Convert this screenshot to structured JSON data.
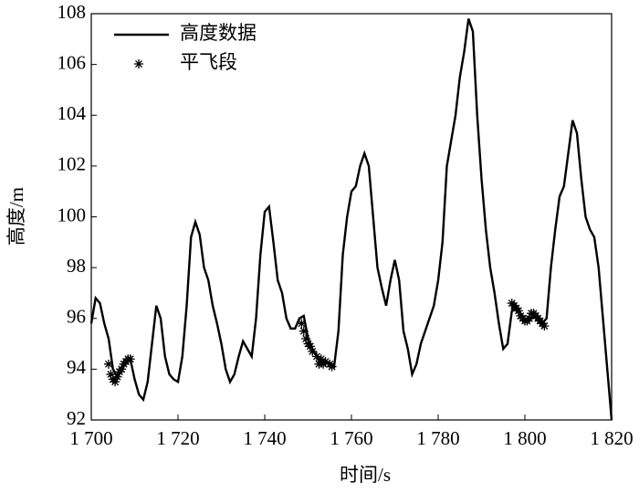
{
  "chart_data": {
    "type": "line",
    "xlabel": "时间/s",
    "ylabel": "高度/m",
    "xlim": [
      1700,
      1820
    ],
    "xticks": [
      {
        "value": 1700,
        "label": "1 700"
      },
      {
        "value": 1720,
        "label": "1 720"
      },
      {
        "value": 1740,
        "label": "1 740"
      },
      {
        "value": 1760,
        "label": "1 760"
      },
      {
        "value": 1780,
        "label": "1 780"
      },
      {
        "value": 1800,
        "label": "1 800"
      },
      {
        "value": 1820,
        "label": "1 820"
      }
    ],
    "ylim": [
      92,
      108
    ],
    "yticks": [
      92,
      94,
      96,
      98,
      100,
      102,
      104,
      106,
      108
    ],
    "legend": "upper left",
    "grid": false,
    "series": [
      {
        "name": "高度数据",
        "color": "#000000",
        "style": "line",
        "x": [
          1700,
          1701,
          1702,
          1703,
          1704,
          1705,
          1706,
          1707,
          1708,
          1709,
          1710,
          1711,
          1712,
          1713,
          1714,
          1715,
          1716,
          1717,
          1718,
          1719,
          1720,
          1721,
          1722,
          1723,
          1724,
          1725,
          1726,
          1727,
          1728,
          1729,
          1730,
          1731,
          1732,
          1733,
          1734,
          1735,
          1736,
          1737,
          1738,
          1739,
          1740,
          1741,
          1742,
          1743,
          1744,
          1745,
          1746,
          1747,
          1748,
          1749,
          1750,
          1751,
          1752,
          1753,
          1754,
          1755,
          1756,
          1757,
          1758,
          1759,
          1760,
          1761,
          1762,
          1763,
          1764,
          1765,
          1766,
          1767,
          1768,
          1769,
          1770,
          1771,
          1772,
          1773,
          1774,
          1775,
          1776,
          1777,
          1778,
          1779,
          1780,
          1781,
          1782,
          1783,
          1784,
          1785,
          1786,
          1787,
          1788,
          1789,
          1790,
          1791,
          1792,
          1793,
          1794,
          1795,
          1796,
          1797,
          1798,
          1799,
          1800,
          1801,
          1802,
          1803,
          1804,
          1805,
          1806,
          1807,
          1808,
          1809,
          1810,
          1811,
          1812,
          1813,
          1814,
          1815,
          1816,
          1817,
          1818,
          1819,
          1820
        ],
        "values": [
          95.8,
          96.8,
          96.6,
          95.8,
          95.2,
          94.0,
          93.7,
          94.0,
          94.3,
          94.4,
          93.6,
          93.0,
          92.8,
          93.5,
          95.0,
          96.5,
          96.0,
          94.5,
          93.8,
          93.6,
          93.5,
          94.5,
          96.5,
          99.2,
          99.8,
          99.3,
          98.0,
          97.5,
          96.5,
          95.8,
          95.0,
          94.0,
          93.5,
          93.8,
          94.5,
          95.1,
          94.8,
          94.5,
          96.0,
          98.5,
          100.2,
          100.4,
          99.0,
          97.5,
          97.0,
          96.0,
          95.6,
          95.6,
          96.0,
          96.1,
          95.2,
          94.8,
          94.5,
          94.2,
          94.3,
          94.2,
          94.1,
          95.5,
          98.5,
          100.0,
          101.0,
          101.2,
          102.0,
          102.5,
          102.0,
          100.0,
          98.0,
          97.2,
          96.5,
          97.5,
          98.3,
          97.5,
          95.5,
          94.8,
          93.8,
          94.2,
          95.0,
          95.5,
          96.0,
          96.5,
          97.5,
          99.0,
          102.0,
          103.0,
          104.0,
          105.5,
          106.5,
          107.8,
          107.3,
          104.0,
          101.5,
          99.5,
          98.0,
          97.0,
          95.8,
          94.8,
          95.0,
          96.3,
          96.5,
          96.2,
          96.0,
          95.9,
          96.1,
          96.0,
          95.8,
          96.0,
          98.0,
          99.5,
          100.8,
          101.2,
          102.5,
          103.8,
          103.3,
          101.5,
          100.0,
          99.5,
          99.2,
          98.0,
          96.0,
          94.0,
          92.0
        ]
      },
      {
        "name": "平飞段",
        "color": "#000000",
        "style": "marker",
        "x": [
          1704,
          1704.5,
          1705,
          1705.5,
          1706,
          1706.5,
          1707,
          1707.5,
          1708,
          1708.5,
          1709,
          1748.5,
          1749,
          1749.5,
          1750,
          1750.5,
          1751,
          1752,
          1752.5,
          1753,
          1753.5,
          1754,
          1755,
          1755.5,
          1797,
          1797.5,
          1798,
          1798.5,
          1799,
          1799.5,
          1800,
          1800.5,
          1801,
          1801.5,
          1802,
          1802.5,
          1803,
          1803.5,
          1804,
          1804.5
        ],
        "values": [
          94.2,
          93.8,
          93.6,
          93.5,
          93.7,
          93.9,
          94.0,
          94.2,
          94.3,
          94.4,
          94.4,
          95.8,
          95.5,
          95.2,
          95.0,
          94.9,
          94.7,
          94.5,
          94.2,
          94.4,
          94.2,
          94.3,
          94.2,
          94.1,
          96.6,
          96.5,
          96.4,
          96.3,
          96.1,
          96.0,
          95.9,
          95.9,
          96.0,
          96.2,
          96.2,
          96.1,
          96.0,
          95.9,
          95.8,
          95.7
        ]
      }
    ]
  }
}
